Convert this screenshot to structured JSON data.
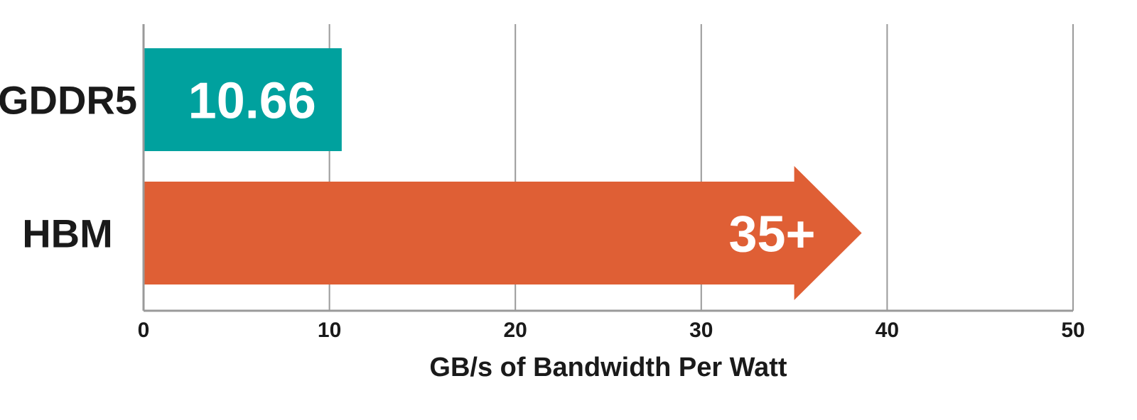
{
  "chart_data": {
    "type": "bar",
    "orientation": "horizontal",
    "title": "",
    "xlabel": "GB/s of Bandwidth Per Watt",
    "ylabel": "",
    "xlim": [
      0,
      50
    ],
    "xticks": [
      0,
      10,
      20,
      30,
      40,
      50
    ],
    "grid": true,
    "categories": [
      "GDDR5",
      "HBM"
    ],
    "values": [
      10.66,
      35
    ],
    "data_labels": [
      "10.66",
      "35+"
    ],
    "colors": [
      "#00a19e",
      "#df5f35"
    ],
    "bar_shapes": [
      "rect",
      "arrow"
    ]
  }
}
